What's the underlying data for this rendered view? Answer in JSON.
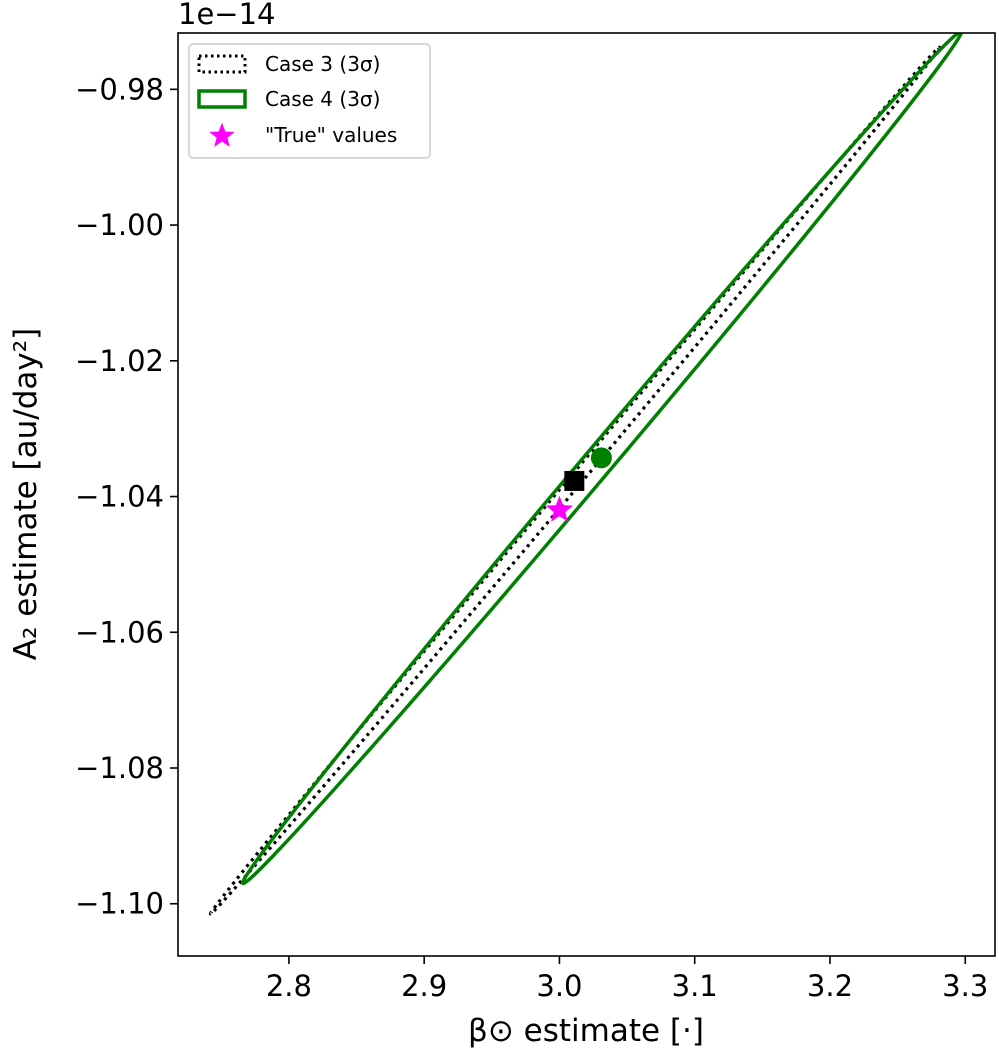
{
  "chart_data": {
    "type": "scatter",
    "title": "",
    "xlabel": "β⊙ estimate [·]",
    "ylabel": "A₂ estimate [au/day²]",
    "y_offset_text": "1e−14",
    "y_scale_exponent": -14,
    "xlim": [
      2.718,
      3.322
    ],
    "ylim": [
      -1.1077,
      -0.9717
    ],
    "x_ticks": [
      2.8,
      2.9,
      3.0,
      3.1,
      3.2,
      3.3
    ],
    "x_tick_labels": [
      "2.8",
      "2.9",
      "3.0",
      "3.1",
      "3.2",
      "3.3"
    ],
    "y_ticks": [
      -1.1,
      -1.08,
      -1.06,
      -1.04,
      -1.02,
      -1.0,
      -0.98
    ],
    "y_tick_labels": [
      "−1.10",
      "−1.08",
      "−1.06",
      "−1.04",
      "−1.02",
      "−1.00",
      "−0.98"
    ],
    "grid": false,
    "legend_position": "top-left",
    "series": [
      {
        "name": "Case 3 (3σ)",
        "kind": "ellipse",
        "style": "dotted",
        "color": "#000000",
        "center": [
          3.011,
          -1.0377
        ],
        "vertex_a": [
          3.281,
          -0.9738
        ],
        "vertex_b": [
          2.742,
          -1.1015
        ],
        "half_width": 0.0045
      },
      {
        "name": "Case 4 (3σ)",
        "kind": "ellipse",
        "style": "solid",
        "color": "#008000",
        "center": [
          3.031,
          -1.0343
        ],
        "vertex_a": [
          3.297,
          -0.9715
        ],
        "vertex_b": [
          2.766,
          -1.097
        ],
        "half_width": 0.0105
      },
      {
        "name": "",
        "kind": "marker",
        "marker": "square",
        "color": "#000000",
        "x": 3.011,
        "y": -1.0377
      },
      {
        "name": "",
        "kind": "marker",
        "marker": "circle",
        "color": "#008000",
        "x": 3.031,
        "y": -1.0343
      },
      {
        "name": "\"True\" values",
        "kind": "marker",
        "marker": "star",
        "color": "#ff00ff",
        "x": 3.0,
        "y": -1.042
      }
    ]
  }
}
